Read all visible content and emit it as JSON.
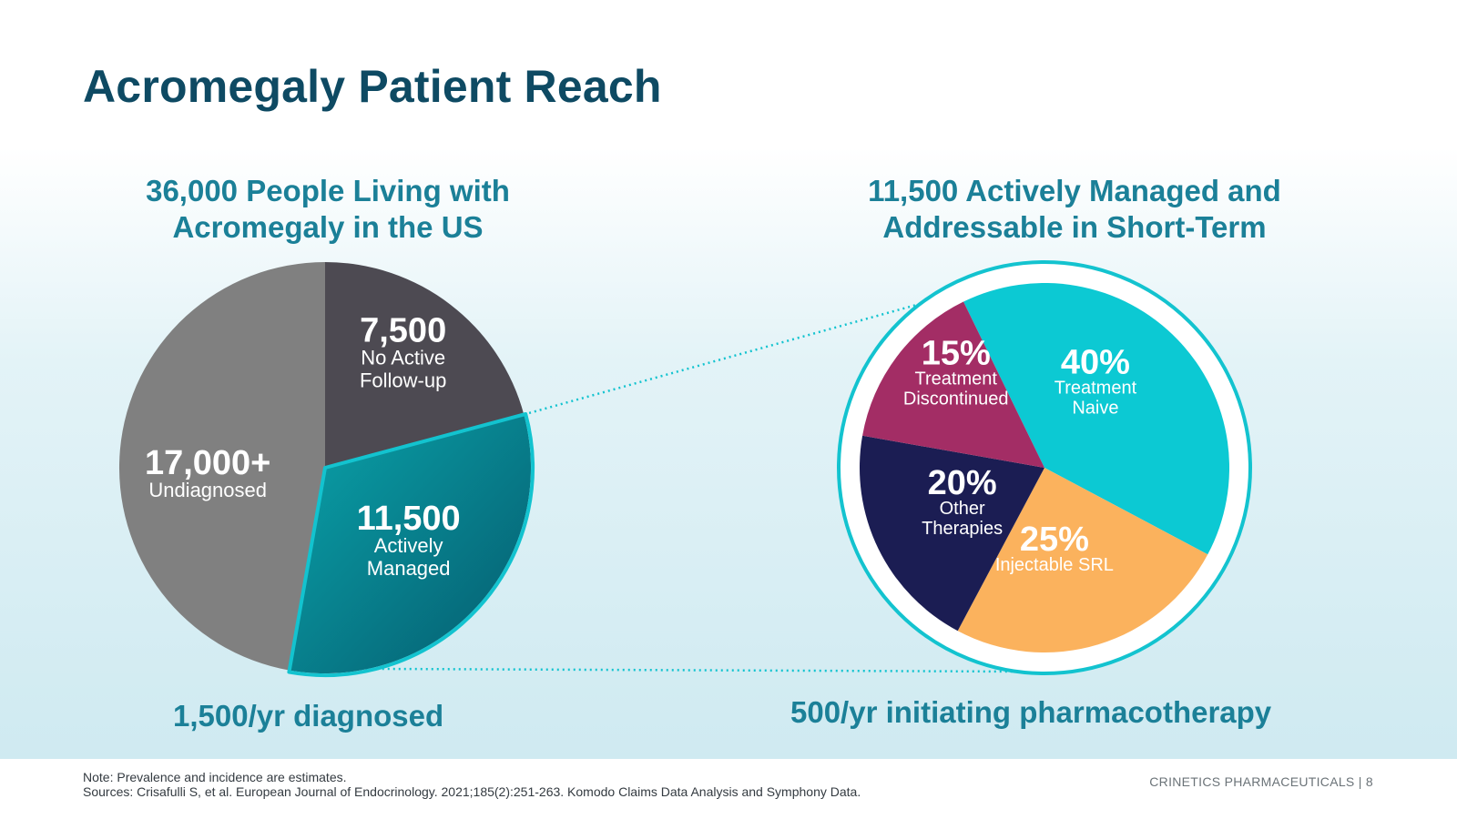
{
  "slide": {
    "title": "Acromegaly Patient Reach",
    "left_heading_line1": "36,000 People Living with",
    "left_heading_line2": "Acromegaly in the US",
    "right_heading_line1": "11,500 Actively Managed and",
    "right_heading_line2": "Addressable in Short-Term",
    "left_bottom": "1,500/yr diagnosed",
    "right_bottom": "500/yr initiating pharmacotherapy",
    "note_line1": "Note: Prevalence and incidence are estimates.",
    "note_line2": "Sources: Crisafulli S, et al. European Journal of Endocrinology. 2021;185(2):251-263. Komodo Claims Data Analysis and Symphony Data.",
    "company": "CRINETICS PHARMACEUTICALS",
    "separator": "|",
    "page_number": "8"
  },
  "chart_data": [
    {
      "type": "pie",
      "title": "36,000 People Living with Acromegaly in the US",
      "slices": [
        {
          "value_label": "7,500",
          "name": "No Active Follow-up",
          "value": 7500,
          "color": "#4d4a52"
        },
        {
          "value_label": "11,500",
          "name": "Actively Managed",
          "value": 11500,
          "color": "#0b8a95"
        },
        {
          "value_label": "17,000+",
          "name": "Undiagnosed",
          "value": 17000,
          "color": "#808080"
        }
      ],
      "annotation": "1,500/yr diagnosed"
    },
    {
      "type": "pie",
      "title": "11,500 Actively Managed and Addressable in Short-Term",
      "slices": [
        {
          "value_label": "40%",
          "name": "Treatment Naive",
          "value": 40,
          "color": "#0cc9d3"
        },
        {
          "value_label": "25%",
          "name": "Injectable SRL",
          "value": 25,
          "color": "#fbb25d"
        },
        {
          "value_label": "20%",
          "name": "Other Therapies",
          "value": 20,
          "color": "#1b1d53"
        },
        {
          "value_label": "15%",
          "name": "Treatment Discontinued",
          "value": 15,
          "color": "#a32d65"
        }
      ],
      "annotation": "500/yr initiating pharmacotherapy"
    }
  ]
}
